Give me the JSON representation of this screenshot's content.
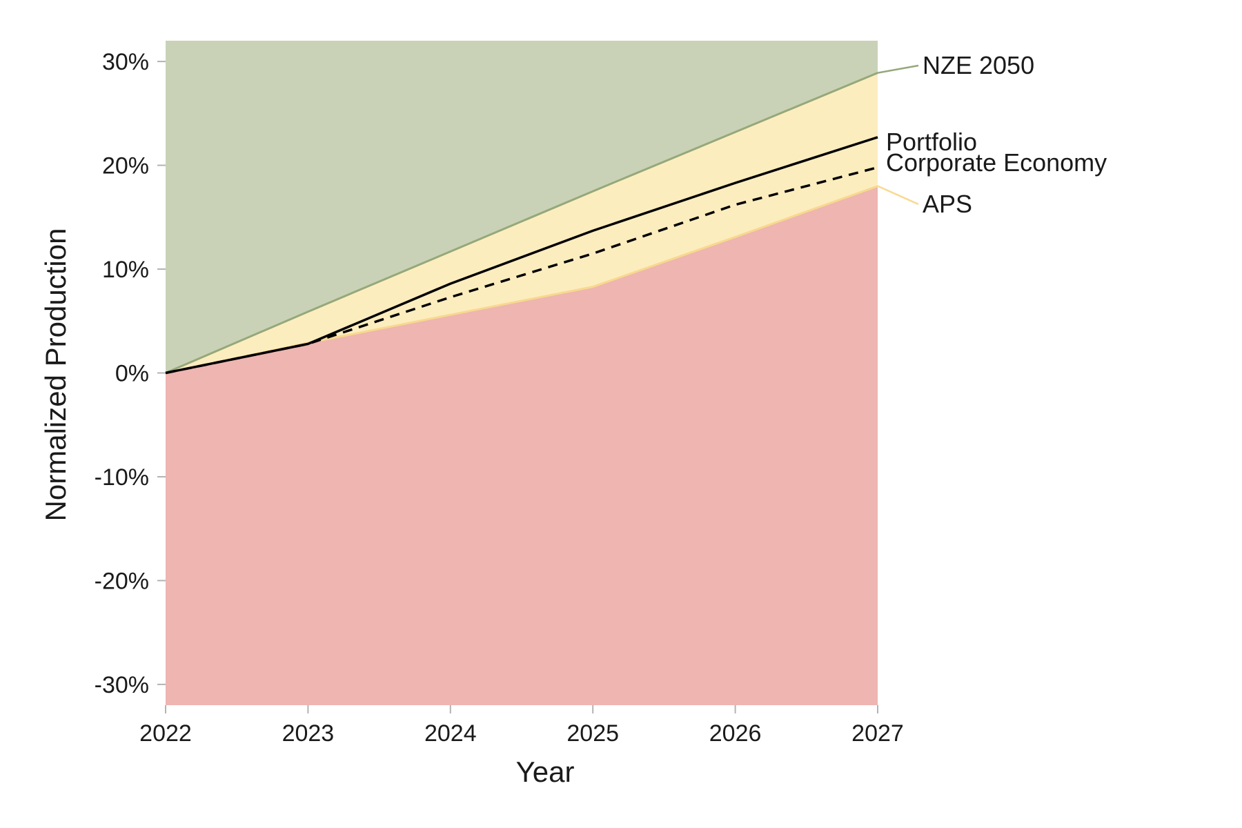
{
  "chart_data": {
    "type": "area",
    "x": [
      2022,
      2023,
      2024,
      2025,
      2026,
      2027
    ],
    "xlabel": "Year",
    "ylabel": "Normalized Production",
    "ylim": [
      -32,
      32
    ],
    "y_ticks": [
      -30,
      -20,
      -10,
      0,
      10,
      20,
      30
    ],
    "y_tick_labels": [
      "-30%",
      "-20%",
      "-10%",
      "0%",
      "10%",
      "20%",
      "30%"
    ],
    "x_tick_labels": [
      "2022",
      "2023",
      "2024",
      "2025",
      "2026",
      "2027"
    ],
    "grid": false,
    "zones": [
      {
        "fill": "#c9d2b6"
      },
      {
        "fill": "#fcedbf"
      },
      {
        "fill": "#eeb5b1"
      }
    ],
    "series": [
      {
        "name": "NZE 2050",
        "values": [
          0,
          5.9,
          11.7,
          17.5,
          23.2,
          28.9
        ],
        "color": "#95a87a",
        "style": "solid"
      },
      {
        "name": "APS",
        "values": [
          0,
          2.9,
          5.6,
          8.3,
          13.1,
          18.0
        ],
        "color": "#f8d98e",
        "style": "solid"
      },
      {
        "name": "Portfolio",
        "values": [
          0,
          2.8,
          8.6,
          13.7,
          18.3,
          22.7
        ],
        "color": "#000000",
        "style": "solid"
      },
      {
        "name": "Corporate Economy",
        "values": [
          0,
          2.8,
          7.3,
          11.5,
          16.2,
          19.8
        ],
        "color": "#000000",
        "style": "dashed"
      }
    ]
  }
}
